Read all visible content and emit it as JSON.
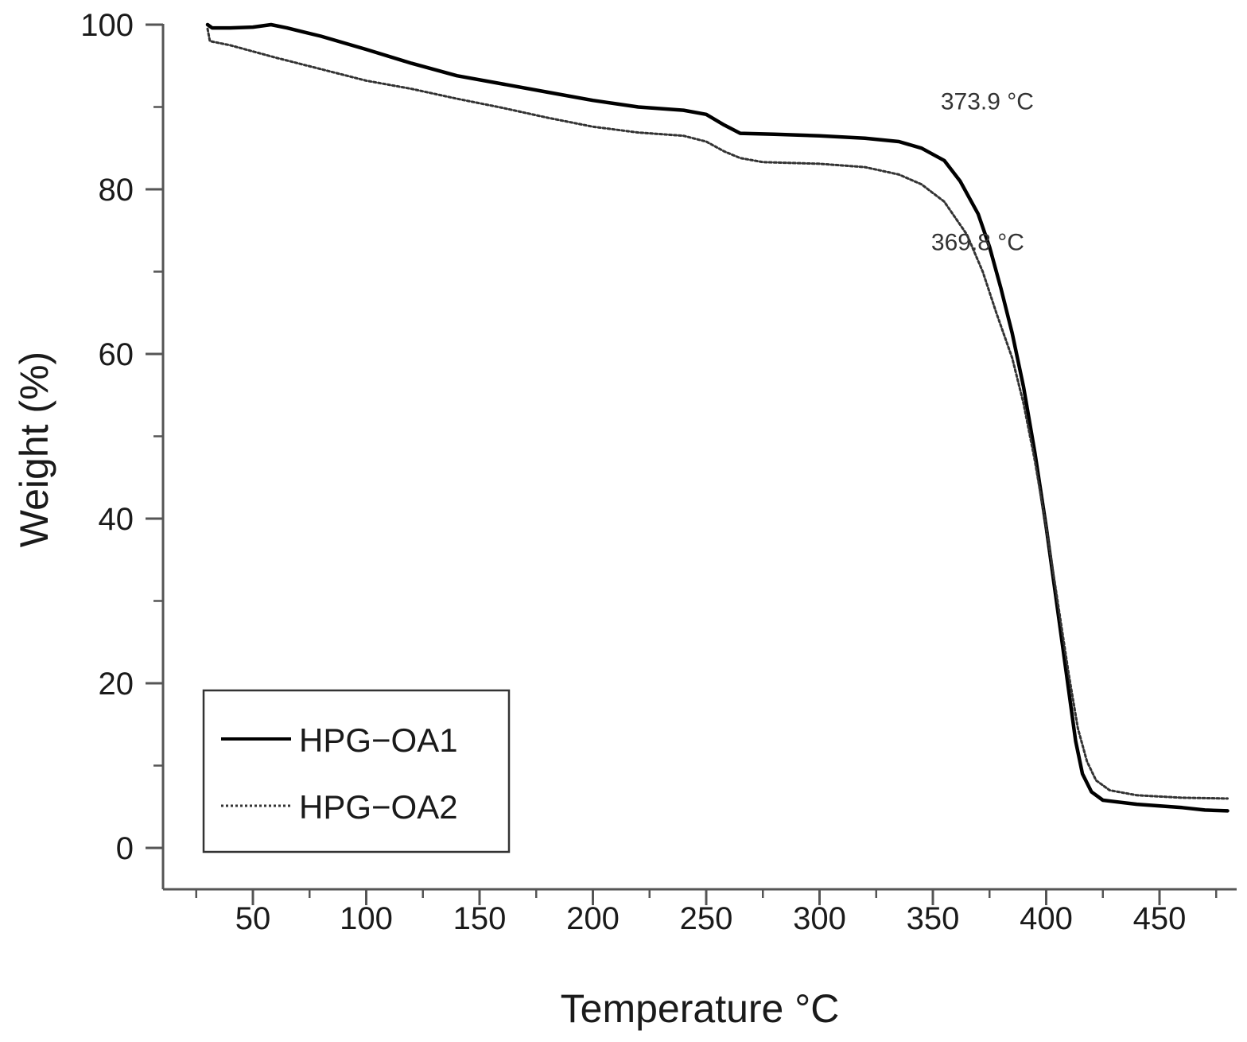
{
  "chart_data": {
    "type": "line",
    "xlabel": "Temperature °C",
    "ylabel": "Weight (%)",
    "xlim": [
      11,
      480
    ],
    "ylim": [
      -5,
      101
    ],
    "x_ticks": [
      50,
      100,
      150,
      200,
      250,
      300,
      350,
      400,
      450
    ],
    "x_minor_ticks": [
      25,
      75,
      125,
      175,
      225,
      275,
      325,
      375,
      425,
      475
    ],
    "y_ticks": [
      0,
      20,
      40,
      60,
      80,
      100
    ],
    "y_minor_ticks": [
      10,
      30,
      50,
      70,
      90
    ],
    "x_tick_labels": [
      "50",
      "100",
      "150",
      "200",
      "250",
      "300",
      "350",
      "400",
      "450"
    ],
    "y_tick_labels": [
      "0",
      "20",
      "40",
      "60",
      "80",
      "100"
    ],
    "grid": false,
    "legend_position": "bottom-left",
    "series": [
      {
        "name": "HPG−OA1",
        "style": "solid",
        "color": "#000000",
        "points": [
          [
            30,
            100
          ],
          [
            32,
            99.6
          ],
          [
            40,
            99.6
          ],
          [
            50,
            99.7
          ],
          [
            58,
            100
          ],
          [
            65,
            99.6
          ],
          [
            80,
            98.6
          ],
          [
            100,
            97.0
          ],
          [
            120,
            95.3
          ],
          [
            140,
            93.8
          ],
          [
            160,
            92.8
          ],
          [
            180,
            91.8
          ],
          [
            200,
            90.8
          ],
          [
            220,
            90.0
          ],
          [
            240,
            89.6
          ],
          [
            250,
            89.1
          ],
          [
            258,
            87.8
          ],
          [
            265,
            86.8
          ],
          [
            280,
            86.7
          ],
          [
            300,
            86.5
          ],
          [
            320,
            86.2
          ],
          [
            335,
            85.8
          ],
          [
            345,
            85.0
          ],
          [
            355,
            83.5
          ],
          [
            362,
            81.0
          ],
          [
            370,
            77.0
          ],
          [
            375,
            73.0
          ],
          [
            380,
            68.0
          ],
          [
            385,
            62.5
          ],
          [
            390,
            56.0
          ],
          [
            395,
            48.0
          ],
          [
            400,
            39.0
          ],
          [
            405,
            29.0
          ],
          [
            410,
            19.0
          ],
          [
            413,
            13.0
          ],
          [
            416,
            9.0
          ],
          [
            420,
            6.8
          ],
          [
            425,
            5.8
          ],
          [
            440,
            5.3
          ],
          [
            460,
            4.9
          ],
          [
            470,
            4.6
          ],
          [
            480,
            4.5
          ]
        ]
      },
      {
        "name": "HPG−OA2",
        "style": "dotted",
        "color": "#333333",
        "points": [
          [
            30,
            99.5
          ],
          [
            31,
            98.0
          ],
          [
            40,
            97.5
          ],
          [
            60,
            96.0
          ],
          [
            80,
            94.6
          ],
          [
            100,
            93.2
          ],
          [
            120,
            92.2
          ],
          [
            140,
            91.0
          ],
          [
            160,
            89.9
          ],
          [
            180,
            88.7
          ],
          [
            200,
            87.6
          ],
          [
            220,
            86.9
          ],
          [
            240,
            86.5
          ],
          [
            250,
            85.8
          ],
          [
            258,
            84.6
          ],
          [
            265,
            83.8
          ],
          [
            275,
            83.3
          ],
          [
            300,
            83.1
          ],
          [
            320,
            82.7
          ],
          [
            335,
            81.8
          ],
          [
            345,
            80.6
          ],
          [
            355,
            78.5
          ],
          [
            365,
            74.5
          ],
          [
            372,
            70.0
          ],
          [
            378,
            65.0
          ],
          [
            385,
            59.5
          ],
          [
            390,
            54.0
          ],
          [
            395,
            47.0
          ],
          [
            400,
            39.0
          ],
          [
            405,
            30.0
          ],
          [
            410,
            21.0
          ],
          [
            414,
            14.5
          ],
          [
            418,
            10.5
          ],
          [
            422,
            8.2
          ],
          [
            428,
            7.0
          ],
          [
            440,
            6.4
          ],
          [
            460,
            6.1
          ],
          [
            480,
            6.0
          ]
        ]
      }
    ],
    "annotations": [
      {
        "text": "373.9 °C",
        "x": 374,
        "y": 89.7
      },
      {
        "text": "369.8 °C",
        "x": 369.8,
        "y": 72.6
      }
    ]
  }
}
